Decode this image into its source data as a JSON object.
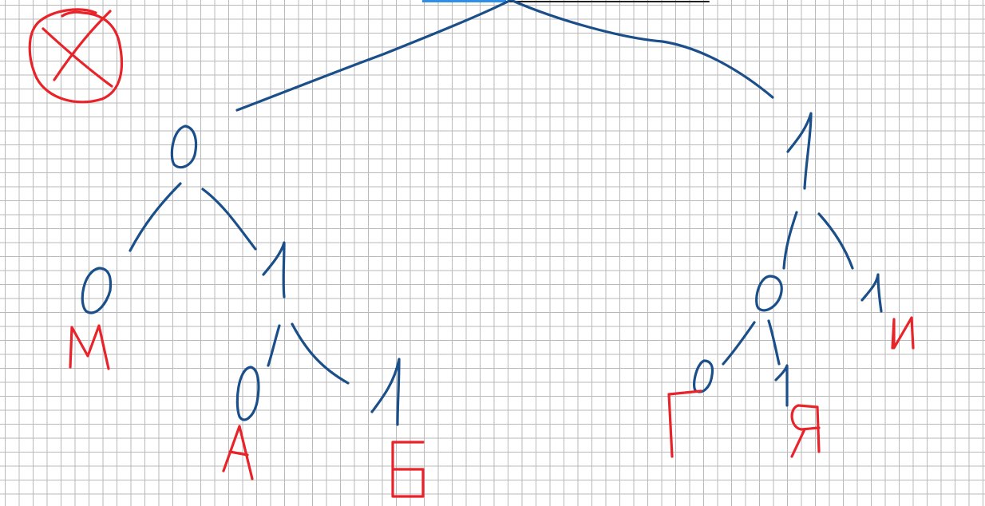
{
  "colors": {
    "tree_ink": "#1b4f8a",
    "letter_ink": "#e8232a",
    "grid": "#b9b9b9",
    "top_highlight": "#2f8fe8"
  },
  "tree": {
    "left_branch_digit": "0",
    "right_branch_digit": "1",
    "left_left_digit": "0",
    "left_right_digit": "1",
    "left_right_left_digit": "0",
    "left_right_right_digit": "1",
    "right_left_digit": "0",
    "right_right_digit": "1",
    "right_left_left_digit": "0",
    "right_left_right_digit": "1"
  },
  "letters": {
    "m": "М",
    "a": "А",
    "b": "Б",
    "g": "Г",
    "ya": "Я",
    "i": "И"
  },
  "icons": {
    "cross_circle": "crossed-circle-icon"
  }
}
